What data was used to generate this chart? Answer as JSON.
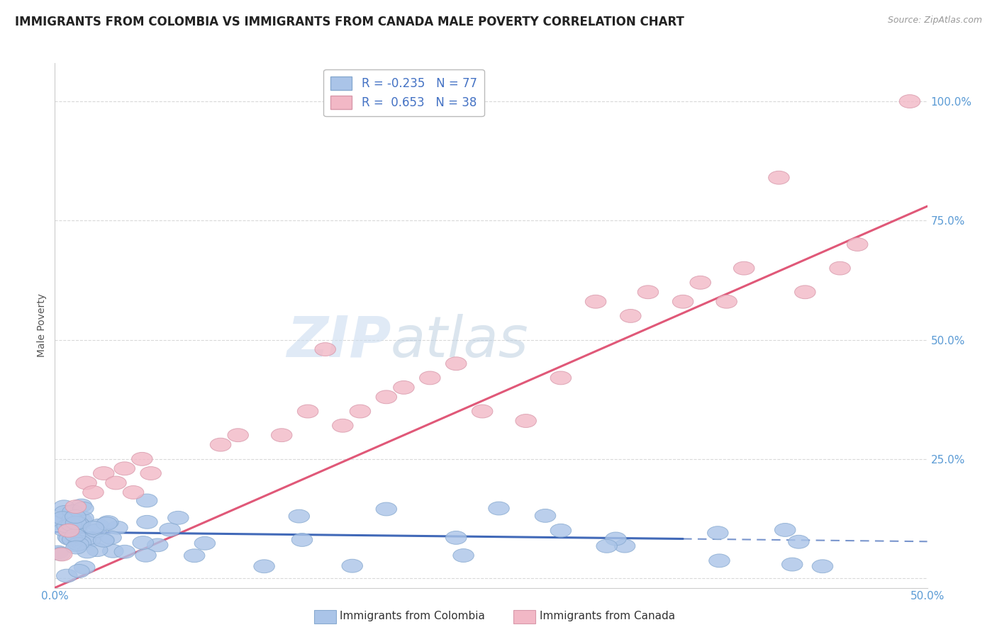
{
  "title": "IMMIGRANTS FROM COLOMBIA VS IMMIGRANTS FROM CANADA MALE POVERTY CORRELATION CHART",
  "source": "Source: ZipAtlas.com",
  "ylabel": "Male Poverty",
  "xlim": [
    0.0,
    0.5
  ],
  "ylim": [
    -0.02,
    1.08
  ],
  "colombia_color": "#aac4e8",
  "colombia_edge": "#88aad0",
  "canada_color": "#f2b8c6",
  "canada_edge": "#d898aa",
  "colombia_line_color": "#4169b8",
  "canada_line_color": "#e05878",
  "colombia_R": -0.235,
  "colombia_N": 77,
  "canada_R": 0.653,
  "canada_N": 38,
  "background_color": "#ffffff",
  "grid_color": "#d0d0d0",
  "title_fontsize": 12,
  "axis_label_fontsize": 10,
  "tick_fontsize": 11,
  "watermark_zip_color": "#cddcef",
  "watermark_atlas_color": "#b8ccdf"
}
